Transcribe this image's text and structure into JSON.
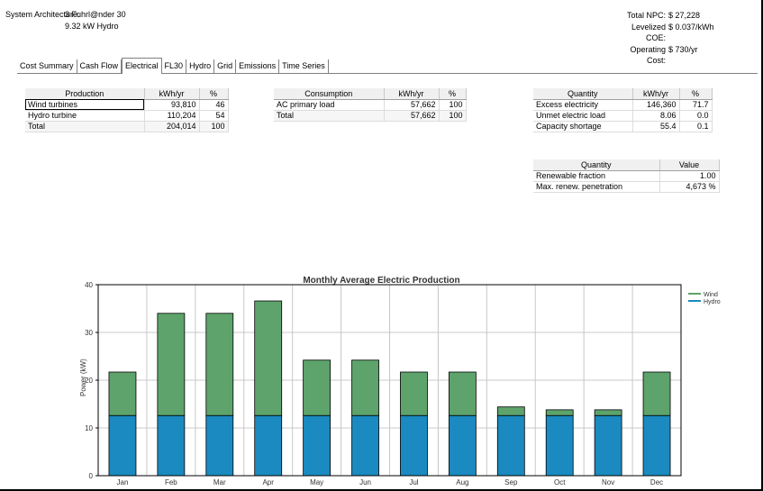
{
  "header": {
    "arch_label": "System Architecture:",
    "arch_line1": "3 Fuhrl@nder 30",
    "arch_line2": "9.32 kW Hydro",
    "totals": [
      {
        "label": "Total NPC:",
        "value": "$ 27,228"
      },
      {
        "label": "Levelized COE:",
        "value": "$ 0.037/kWh"
      },
      {
        "label": "Operating Cost:",
        "value": "$ 730/yr"
      }
    ]
  },
  "tabs": [
    "Cost Summary",
    "Cash Flow",
    "Electrical",
    "FL30",
    "Hydro",
    "Grid",
    "Emissions",
    "Time Series"
  ],
  "active_tab": "Electrical",
  "production": {
    "headers": [
      "Production",
      "kWh/yr",
      "%"
    ],
    "rows": [
      [
        "Wind turbines",
        "93,810",
        "46"
      ],
      [
        "Hydro turbine",
        "110,204",
        "54"
      ],
      [
        "Total",
        "204,014",
        "100"
      ]
    ]
  },
  "consumption": {
    "headers": [
      "Consumption",
      "kWh/yr",
      "%"
    ],
    "rows": [
      [
        "AC primary load",
        "57,662",
        "100"
      ],
      [
        "Total",
        "57,662",
        "100"
      ]
    ]
  },
  "quantity": {
    "headers": [
      "Quantity",
      "kWh/yr",
      "%"
    ],
    "rows": [
      [
        "Excess electricity",
        "146,360",
        "71.7"
      ],
      [
        "Unmet electric load",
        "8.06",
        "0.0"
      ],
      [
        "Capacity shortage",
        "55.4",
        "0.1"
      ]
    ]
  },
  "quantity2": {
    "headers": [
      "Quantity",
      "Value"
    ],
    "rows": [
      [
        "Renewable fraction",
        "1.00"
      ],
      [
        "Max. renew. penetration",
        "4,673 %"
      ]
    ]
  },
  "chart_data": {
    "type": "bar",
    "stacked": true,
    "title": "Monthly Average Electric Production",
    "ylabel": "Power (kW)",
    "xlabel": "",
    "categories": [
      "Jan",
      "Feb",
      "Mar",
      "Apr",
      "May",
      "Jun",
      "Jul",
      "Aug",
      "Sep",
      "Oct",
      "Nov",
      "Dec"
    ],
    "ylim": [
      0,
      40
    ],
    "yticks": [
      0,
      10,
      20,
      30,
      40
    ],
    "grid": true,
    "legend": "top-right",
    "series": [
      {
        "name": "Hydro",
        "color": "#1b8ac0",
        "values": [
          12.6,
          12.6,
          12.6,
          12.6,
          12.6,
          12.6,
          12.6,
          12.6,
          12.6,
          12.6,
          12.6,
          12.6
        ]
      },
      {
        "name": "Wind",
        "color": "#5da36b",
        "values": [
          9.1,
          21.4,
          21.4,
          24.0,
          11.6,
          11.6,
          9.1,
          9.1,
          1.8,
          1.2,
          1.2,
          9.1
        ]
      }
    ]
  }
}
